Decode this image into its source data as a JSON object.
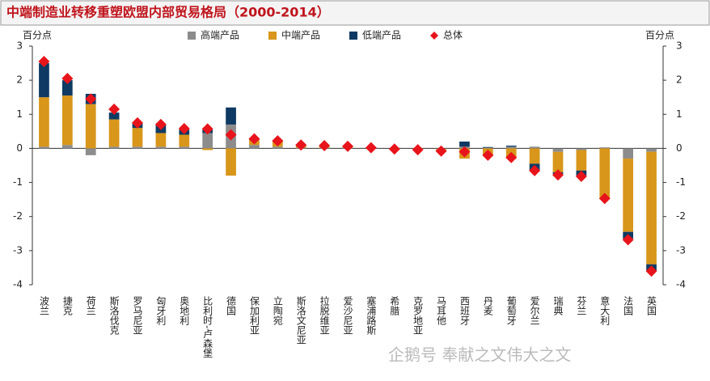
{
  "chart_data": {
    "type": "bar",
    "stacked": true,
    "title": "中端制造业转移重塑欧盟内部贸易格局（2000-2014）",
    "y_label": "百分点",
    "y2_label": "百分点",
    "watermark": "企鹅号 奉献之文伟大之文",
    "categories": [
      "波兰",
      "捷克",
      "荷兰",
      "斯洛伐克",
      "罗马尼亚",
      "匈牙利",
      "奥地利",
      "比利时-卢森堡",
      "德国",
      "保加利亚",
      "立陶宛",
      "斯洛文尼亚",
      "拉脱维亚",
      "爱沙尼亚",
      "塞浦路斯",
      "希腊",
      "克罗地亚",
      "马耳他",
      "西班牙",
      "丹麦",
      "葡萄牙",
      "爱尔兰",
      "瑞典",
      "芬兰",
      "意大利",
      "法国",
      "英国"
    ],
    "series": [
      {
        "name": "高端产品",
        "color": "#8c8c8c",
        "values": [
          0.05,
          0.1,
          -0.2,
          0.05,
          0.05,
          0.05,
          0.05,
          0.45,
          0.7,
          0.1,
          0.05,
          0.02,
          0.02,
          0.02,
          0,
          0,
          0,
          -0.02,
          0.05,
          0.02,
          0.05,
          0.05,
          -0.1,
          -0.05,
          0.03,
          -0.3,
          -0.1
        ]
      },
      {
        "name": "中端产品",
        "color": "#d8961a",
        "values": [
          1.45,
          1.45,
          1.3,
          0.8,
          0.55,
          0.4,
          0.35,
          -0.05,
          -0.8,
          0.15,
          0.15,
          0.05,
          0.05,
          0.03,
          0.02,
          -0.01,
          -0.02,
          -0.05,
          -0.3,
          -0.22,
          -0.3,
          -0.45,
          -0.6,
          -0.6,
          -1.45,
          -2.15,
          -3.3
        ]
      },
      {
        "name": "低端产品",
        "color": "#0e3a63",
        "values": [
          1.0,
          0.45,
          0.3,
          0.2,
          0.15,
          0.25,
          0.15,
          0.1,
          0.5,
          0.03,
          0.02,
          0.02,
          0.02,
          0.02,
          0.01,
          0,
          0,
          0,
          0.15,
          0.02,
          0.03,
          -0.2,
          -0.05,
          -0.15,
          0,
          -0.2,
          -0.2
        ]
      },
      {
        "name": "总体",
        "color": "#e8141c",
        "type": "scatter",
        "values": [
          2.55,
          2.05,
          1.45,
          1.15,
          0.75,
          0.7,
          0.58,
          0.57,
          0.4,
          0.28,
          0.22,
          0.1,
          0.08,
          0.06,
          0.02,
          -0.02,
          -0.04,
          -0.08,
          -0.1,
          -0.2,
          -0.27,
          -0.65,
          -0.78,
          -0.82,
          -1.47,
          -2.68,
          -3.6
        ]
      }
    ],
    "ylim": [
      -4,
      3
    ],
    "yticks": [
      -4,
      -3,
      -2,
      -1,
      0,
      1,
      2,
      3
    ],
    "y2lim": [
      -4,
      3
    ],
    "y2ticks": [
      -4,
      -3,
      -2,
      -1,
      0,
      1,
      2,
      3
    ]
  }
}
